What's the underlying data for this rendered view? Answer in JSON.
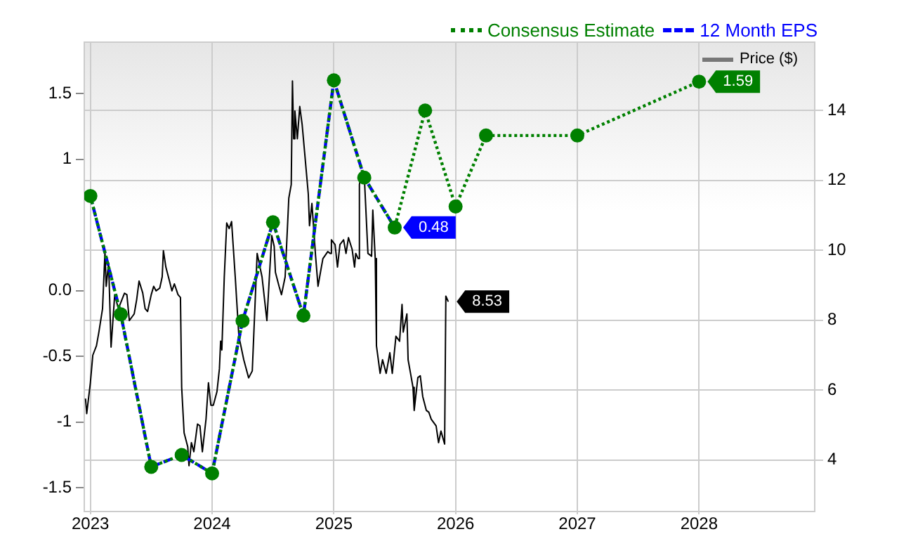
{
  "chart_data": {
    "type": "line",
    "legend": "top right",
    "grid": true,
    "marker": "none",
    "xlim": [
      2022.95,
      2028.95
    ],
    "xticks": [
      2023,
      2024,
      2025,
      2026,
      2027,
      2028
    ],
    "ylim": [
      -1.68,
      1.89
    ],
    "yticks": [
      -1.5,
      -1,
      -0.5,
      {
        "value": 0,
        "label": "0.0"
      },
      1,
      1.5
    ],
    "y2lim": [
      2.53,
      15.95
    ],
    "y2ticks": [
      4,
      6,
      8,
      10,
      12,
      14
    ],
    "series": [
      {
        "name": "Price ($)",
        "color": "#000000",
        "axis": "y2",
        "line_style": "solid",
        "x": [
          2022.96,
          2022.97,
          2023.0,
          2023.02,
          2023.05,
          2023.07,
          2023.1,
          2023.12,
          2023.13,
          2023.15,
          2023.17,
          2023.2,
          2023.23,
          2023.28,
          2023.3,
          2023.32,
          2023.36,
          2023.38,
          2023.4,
          2023.43,
          2023.45,
          2023.47,
          2023.5,
          2023.52,
          2023.54,
          2023.57,
          2023.59,
          2023.6,
          2023.62,
          2023.65,
          2023.67,
          2023.69,
          2023.72,
          2023.74,
          2023.75,
          2023.77,
          2023.8,
          2023.81,
          2023.83,
          2023.85,
          2023.88,
          2023.9,
          2023.92,
          2023.95,
          2023.97,
          2023.99,
          2024.01,
          2024.04,
          2024.06,
          2024.07,
          2024.08,
          2024.1,
          2024.12,
          2024.14,
          2024.16,
          2024.19,
          2024.22,
          2024.26,
          2024.3,
          2024.33,
          2024.37,
          2024.41,
          2024.45,
          2024.49,
          2024.51,
          2024.52,
          2024.55,
          2024.57,
          2024.6,
          2024.63,
          2024.65,
          2024.66,
          2024.67,
          2024.68,
          2024.7,
          2024.72,
          2024.74,
          2024.76,
          2024.79,
          2024.8,
          2024.82,
          2024.85,
          2024.87,
          2024.89,
          2024.91,
          2024.95,
          2024.97,
          2024.98,
          2025.01,
          2025.03,
          2025.05,
          2025.08,
          2025.1,
          2025.12,
          2025.15,
          2025.17,
          2025.18,
          2025.2,
          2025.21,
          2025.23,
          2025.25,
          2025.28,
          2025.31,
          2025.32,
          2025.34,
          2025.35,
          2025.38,
          2025.4,
          2025.43,
          2025.46,
          2025.48,
          2025.51,
          2025.54,
          2025.56,
          2025.57,
          2025.6,
          2025.61,
          2025.63,
          2025.65,
          2025.66,
          2025.69,
          2025.71,
          2025.73,
          2025.76,
          2025.78,
          2025.8,
          2025.84,
          2025.86,
          2025.88,
          2025.91,
          2025.92,
          2025.94
        ],
        "values": [
          5.76,
          5.33,
          6.21,
          7.0,
          7.27,
          7.66,
          8.33,
          9.95,
          8.97,
          9.63,
          7.23,
          8.73,
          8.33,
          8.77,
          8.73,
          7.99,
          8.18,
          8.58,
          9.12,
          8.78,
          8.33,
          8.25,
          8.73,
          8.97,
          8.84,
          8.92,
          9.24,
          9.99,
          9.52,
          9.12,
          8.84,
          9.04,
          8.73,
          8.65,
          6.08,
          4.78,
          4.38,
          3.84,
          4.5,
          4.24,
          5.03,
          4.98,
          4.24,
          5.17,
          6.21,
          5.57,
          5.57,
          5.96,
          6.61,
          7.4,
          7.15,
          9.24,
          10.78,
          10.62,
          10.82,
          9.24,
          7.54,
          6.87,
          6.35,
          6.55,
          9.91,
          9.24,
          7.99,
          10.42,
          10.11,
          9.37,
          8.97,
          8.73,
          9.24,
          11.49,
          11.88,
          14.84,
          13.19,
          13.98,
          13.19,
          14.11,
          13.58,
          12.8,
          11.61,
          10.7,
          11.34,
          9.83,
          8.97,
          9.37,
          9.76,
          9.96,
          9.91,
          10.3,
          10.16,
          9.52,
          10.16,
          10.3,
          9.91,
          10.36,
          10.03,
          9.52,
          9.91,
          9.76,
          11.88,
          12.28,
          12.13,
          9.91,
          9.83,
          11.15,
          9.76,
          7.27,
          6.48,
          6.87,
          6.48,
          7.07,
          6.48,
          7.54,
          7.4,
          8.45,
          7.66,
          8.18,
          6.87,
          6.48,
          6.08,
          5.42,
          6.36,
          6.41,
          5.82,
          5.42,
          5.37,
          5.17,
          4.98,
          4.5,
          4.83,
          4.46,
          8.69,
          8.53
        ],
        "value_labels": [
          null,
          null,
          null,
          null,
          null,
          null,
          null,
          null,
          null,
          null,
          null,
          null,
          null,
          null,
          null,
          null,
          null,
          null,
          null,
          null,
          null,
          null,
          null,
          null,
          null,
          null,
          null,
          null,
          null,
          null,
          null,
          null,
          null,
          null,
          null,
          null,
          null,
          null,
          null,
          null,
          null,
          null,
          null,
          null,
          null,
          null,
          null,
          null,
          null,
          null,
          null,
          null,
          null,
          null,
          null,
          null,
          null,
          null,
          null,
          null,
          null,
          null,
          null,
          null,
          null,
          null,
          null,
          null,
          null,
          null,
          null,
          null,
          null,
          null,
          null,
          null,
          null,
          null,
          null,
          null,
          null,
          null,
          null,
          null,
          null,
          null,
          null,
          null,
          null,
          null,
          null,
          null,
          null,
          null,
          null,
          null,
          null,
          null,
          null,
          null,
          null,
          null,
          null,
          null,
          null,
          null,
          null,
          null,
          null,
          null,
          null,
          null,
          null,
          null,
          null,
          null,
          null,
          null,
          null,
          null,
          null,
          null,
          null,
          null,
          null,
          null,
          null,
          null,
          null,
          null,
          null,
          "8.53"
        ]
      },
      {
        "name": "12 Month EPS",
        "color": "#0000ff",
        "line_style": "dashed",
        "x": [
          2023.0,
          2023.25,
          2023.5,
          2023.75,
          2024.0,
          2024.25,
          2024.5,
          2024.75,
          2025.0,
          2025.25,
          2025.5
        ],
        "values": [
          0.72,
          -0.18,
          -1.34,
          -1.25,
          -1.39,
          -0.23,
          0.52,
          -0.19,
          1.6,
          0.86,
          0.48
        ],
        "value_labels": [
          null,
          null,
          null,
          null,
          null,
          null,
          null,
          null,
          null,
          null,
          "0.48"
        ]
      },
      {
        "name": "Consensus Estimate",
        "color": "#008000",
        "line_style": "dotted",
        "marker": "circle",
        "x": [
          2023.0,
          2023.25,
          2023.5,
          2023.75,
          2024.0,
          2024.25,
          2024.5,
          2024.75,
          2025.0,
          2025.25,
          2025.5,
          2025.75,
          2026.0,
          2026.25,
          2027.0,
          2028.0
        ],
        "values": [
          0.72,
          -0.18,
          -1.34,
          -1.25,
          -1.39,
          -0.23,
          0.52,
          -0.19,
          1.6,
          0.86,
          0.48,
          1.37,
          0.64,
          1.18,
          1.18,
          1.59
        ],
        "value_labels": [
          null,
          null,
          null,
          null,
          null,
          null,
          null,
          null,
          null,
          null,
          null,
          null,
          null,
          null,
          null,
          "1.59"
        ]
      }
    ]
  }
}
